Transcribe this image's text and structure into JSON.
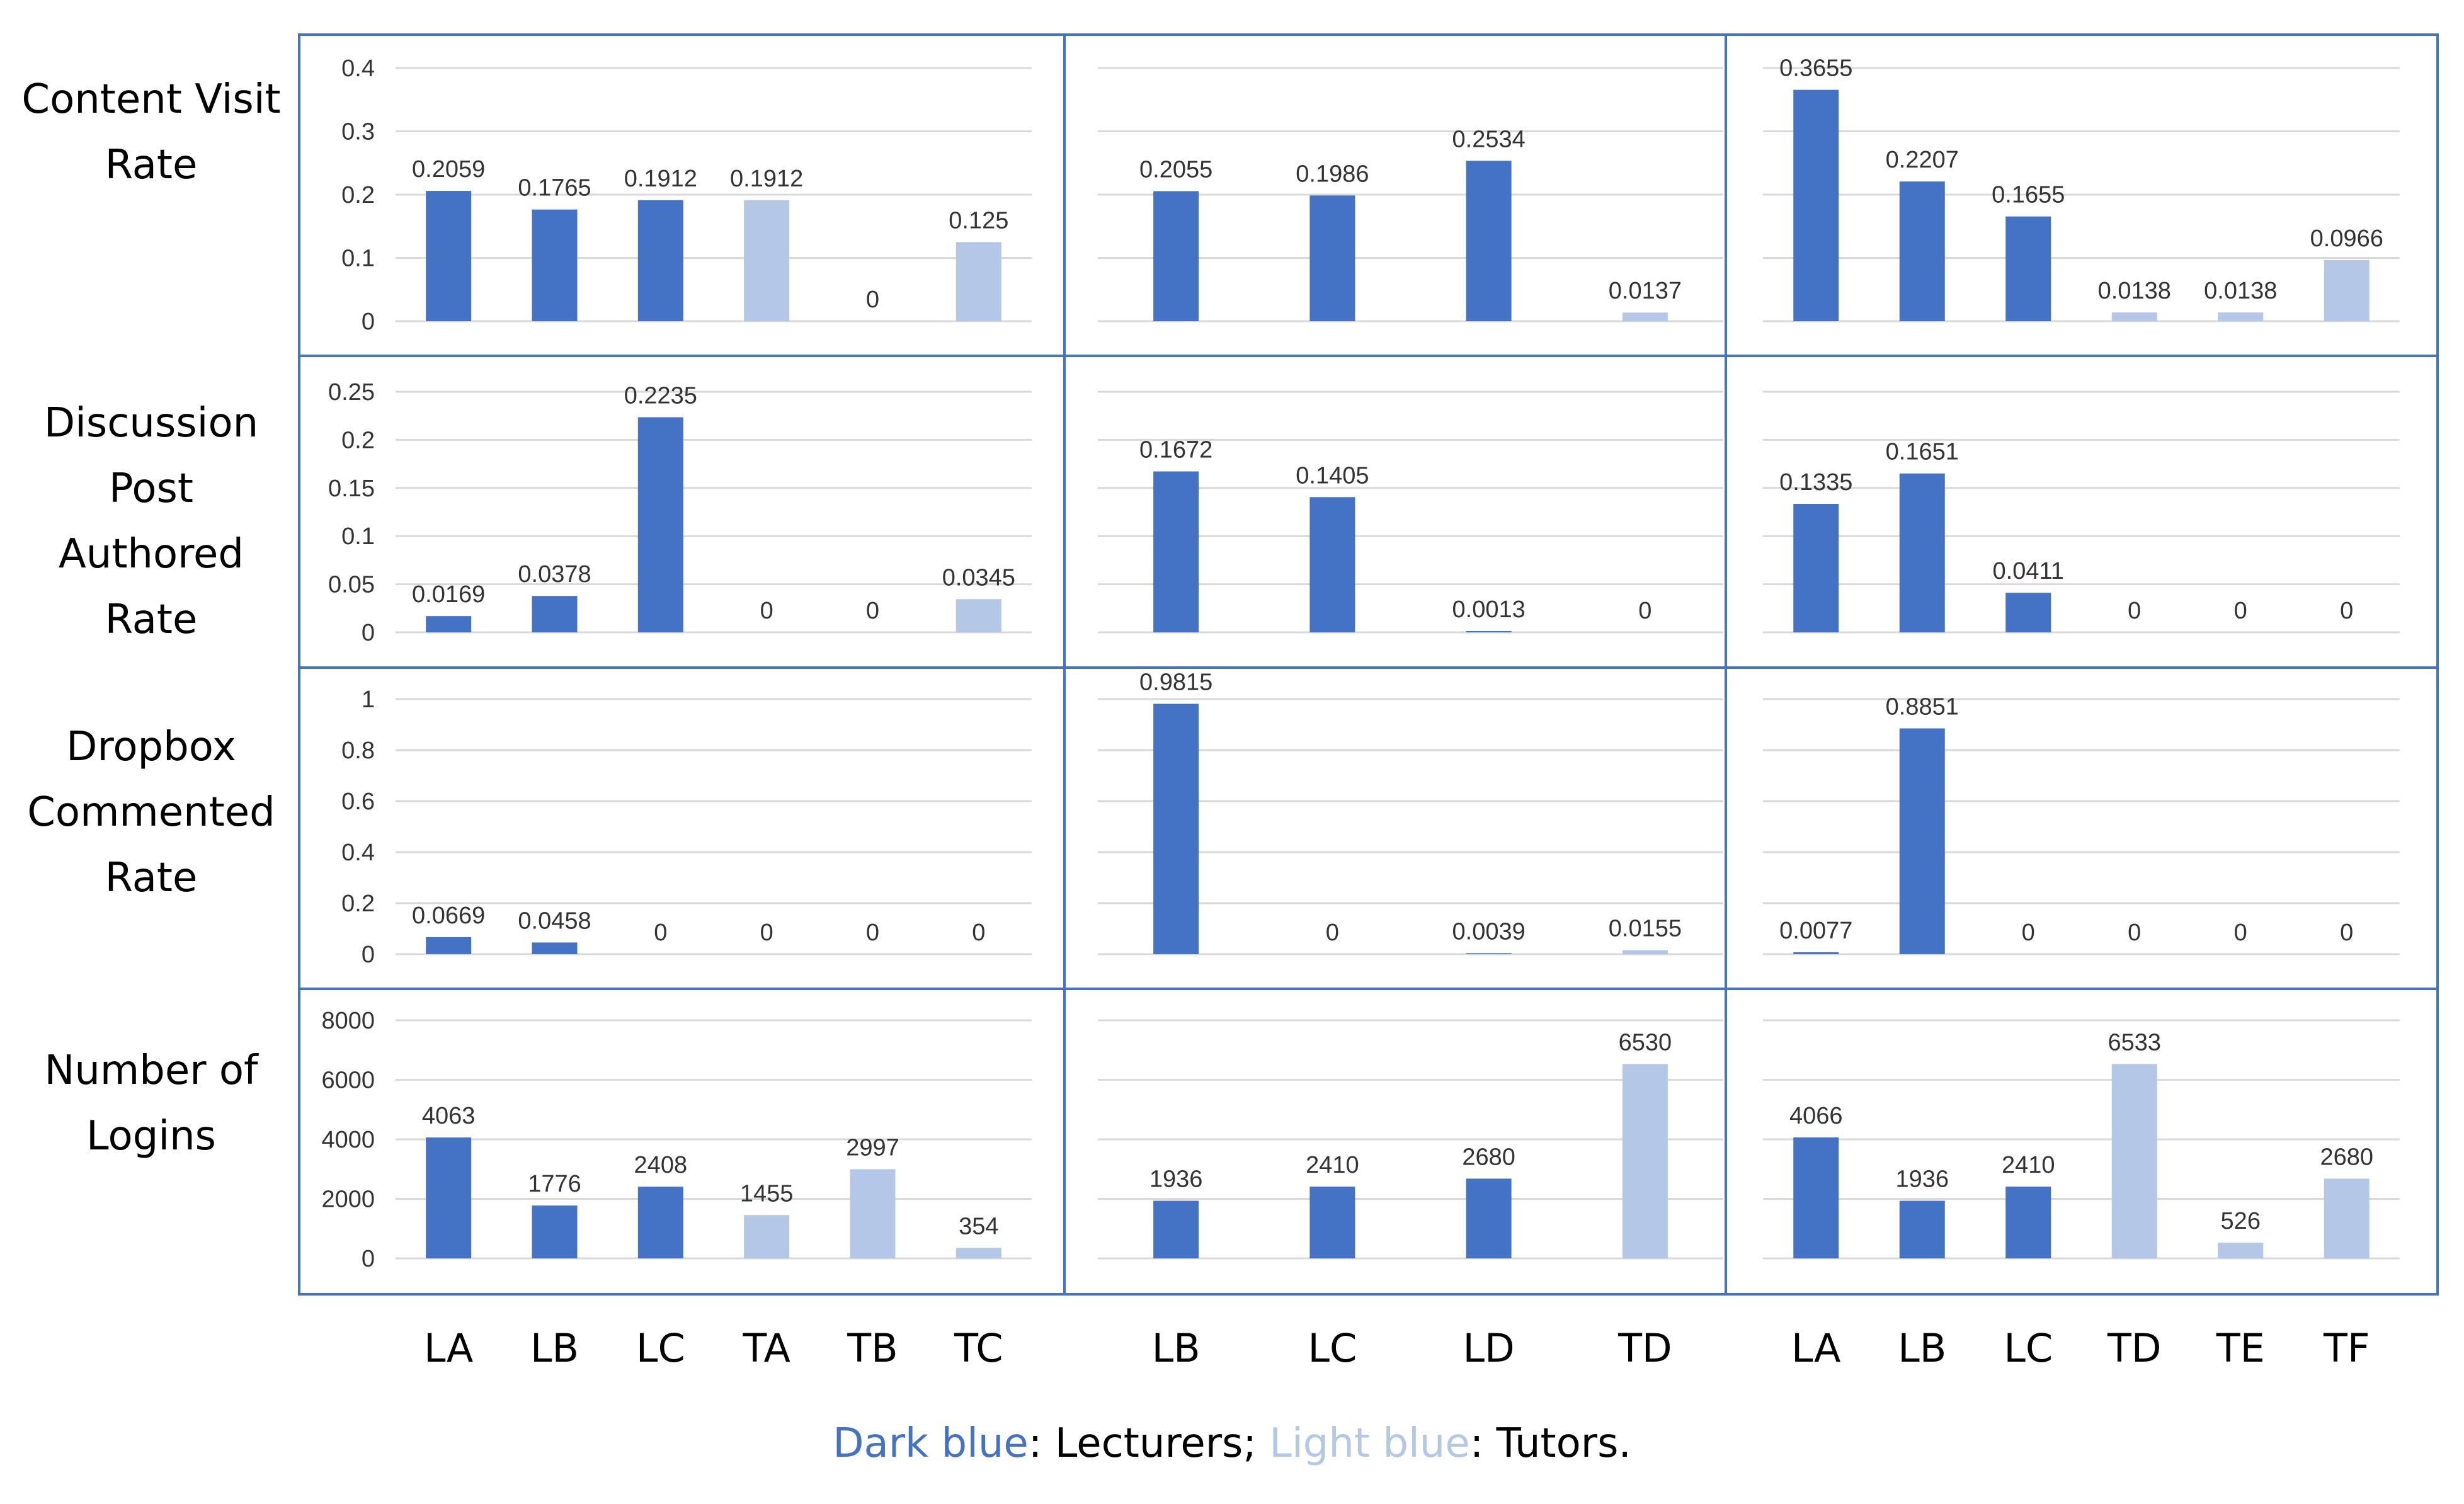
{
  "colors": {
    "lecturer": "#4472C4",
    "tutor": "#B4C7E7",
    "panel_border": "#4472C4",
    "grid": "#D9D9D9",
    "text": "#000000"
  },
  "row_labels": [
    [
      "Content Visit",
      "Rate"
    ],
    [
      "Discussion",
      "Post",
      "Authored",
      "Rate"
    ],
    [
      "Dropbox",
      "Commented",
      "Rate"
    ],
    [
      "Number of",
      "Logins"
    ]
  ],
  "legend": {
    "dark_label": "Dark blue",
    "dark_role": ": Lecturers; ",
    "light_label": "Light blue",
    "light_role": ": Tutors."
  },
  "chart_data": {
    "type": "bar",
    "layout": "small-multiples grid (4 metrics x 3 groups)",
    "columns": [
      {
        "categories": [
          "LA",
          "LB",
          "LC",
          "TA",
          "TB",
          "TC"
        ],
        "roles": [
          "lecturer",
          "lecturer",
          "lecturer",
          "tutor",
          "tutor",
          "tutor"
        ]
      },
      {
        "categories": [
          "LB",
          "LC",
          "LD",
          "TD"
        ],
        "roles": [
          "lecturer",
          "lecturer",
          "lecturer",
          "tutor"
        ]
      },
      {
        "categories": [
          "LA",
          "LB",
          "LC",
          "TD",
          "TE",
          "TF"
        ],
        "roles": [
          "lecturer",
          "lecturer",
          "lecturer",
          "tutor",
          "tutor",
          "tutor"
        ]
      }
    ],
    "rows": [
      {
        "metric": "Content Visit Rate",
        "ylim": [
          0,
          0.4
        ],
        "ticks": [
          "0",
          "0.1",
          "0.2",
          "0.3",
          "0.4"
        ],
        "values": [
          [
            0.2059,
            0.1765,
            0.1912,
            0.1912,
            0,
            0.125
          ],
          [
            0.2055,
            0.1986,
            0.2534,
            0.0137
          ],
          [
            0.3655,
            0.2207,
            0.1655,
            0.0138,
            0.0138,
            0.0966
          ]
        ],
        "labels": [
          [
            "0.2059",
            "0.1765",
            "0.1912",
            "0.1912",
            "0",
            "0.125"
          ],
          [
            "0.2055",
            "0.1986",
            "0.2534",
            "0.0137"
          ],
          [
            "0.3655",
            "0.2207",
            "0.1655",
            "0.0138",
            "0.0138",
            "0.0966"
          ]
        ]
      },
      {
        "metric": "Discussion Post Authored Rate",
        "ylim": [
          0,
          0.25
        ],
        "ticks": [
          "0",
          "0.05",
          "0.1",
          "0.15",
          "0.2",
          "0.25"
        ],
        "values": [
          [
            0.0169,
            0.0378,
            0.2235,
            0,
            0,
            0.0345
          ],
          [
            0.1672,
            0.1405,
            0.0013,
            0
          ],
          [
            0.1335,
            0.1651,
            0.0411,
            0,
            0,
            0
          ]
        ],
        "labels": [
          [
            "0.0169",
            "0.0378",
            "0.2235",
            "0",
            "0",
            "0.0345"
          ],
          [
            "0.1672",
            "0.1405",
            "0.0013",
            "0"
          ],
          [
            "0.1335",
            "0.1651",
            "0.0411",
            "0",
            "0",
            "0"
          ]
        ]
      },
      {
        "metric": "Dropbox Commented Rate",
        "ylim": [
          0,
          1
        ],
        "ticks": [
          "0",
          "0.2",
          "0.4",
          "0.6",
          "0.8",
          "1"
        ],
        "values": [
          [
            0.0669,
            0.0458,
            0,
            0,
            0,
            0
          ],
          [
            0.9815,
            0,
            0.0039,
            0.0155
          ],
          [
            0.0077,
            0.8851,
            0,
            0,
            0,
            0
          ]
        ],
        "labels": [
          [
            "0.0669",
            "0.0458",
            "0",
            "0",
            "0",
            "0"
          ],
          [
            "0.9815",
            "0",
            "0.0039",
            "0.0155"
          ],
          [
            "0.0077",
            "0.8851",
            "0",
            "0",
            "0",
            "0"
          ]
        ]
      },
      {
        "metric": "Number of Logins",
        "ylim": [
          0,
          8000
        ],
        "ticks": [
          "0",
          "2000",
          "4000",
          "6000",
          "8000"
        ],
        "values": [
          [
            4063,
            1776,
            2408,
            1455,
            2997,
            354
          ],
          [
            1936,
            2410,
            2680,
            6530
          ],
          [
            4066,
            1936,
            2410,
            6533,
            526,
            2680
          ]
        ],
        "labels": [
          [
            "4063",
            "1776",
            "2408",
            "1455",
            "2997",
            "354"
          ],
          [
            "1936",
            "2410",
            "2680",
            "6530"
          ],
          [
            "4066",
            "1936",
            "2410",
            "6533",
            "526",
            "2680"
          ]
        ]
      }
    ]
  }
}
